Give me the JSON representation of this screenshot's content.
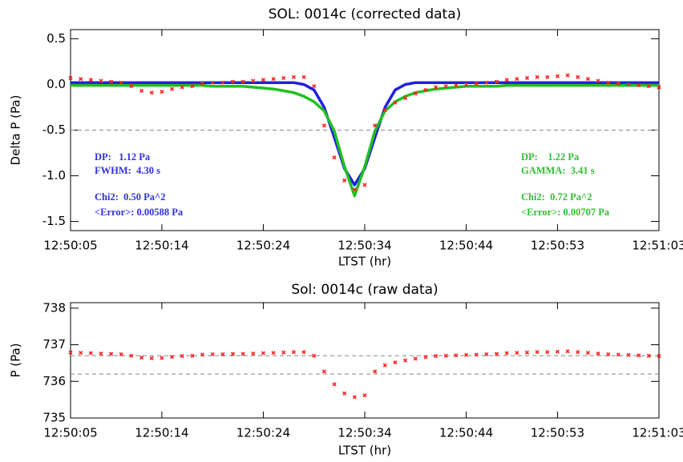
{
  "chart_data": [
    {
      "type": "line",
      "title": "SOL: 0014c (corrected data)",
      "xlabel": "LTST (hr)",
      "ylabel": "Delta P (Pa)",
      "xlim": [
        "12:50:05",
        "12:51:03"
      ],
      "xticks": [
        "12:50:05",
        "12:50:14",
        "12:50:24",
        "12:50:34",
        "12:50:44",
        "12:50:53",
        "12:51:03"
      ],
      "ylim": [
        -1.6,
        0.6
      ],
      "yticks": [
        0.5,
        0.0,
        -0.5,
        -1.0,
        -1.5
      ],
      "ytick_format": 1,
      "hlines": [
        -0.5
      ],
      "x": [
        "12:50:05",
        "12:50:06",
        "12:50:07",
        "12:50:08",
        "12:50:09",
        "12:50:10",
        "12:50:11",
        "12:50:12",
        "12:50:13",
        "12:50:14",
        "12:50:15",
        "12:50:16",
        "12:50:17",
        "12:50:18",
        "12:50:19",
        "12:50:20",
        "12:50:21",
        "12:50:22",
        "12:50:23",
        "12:50:24",
        "12:50:25",
        "12:50:26",
        "12:50:27",
        "12:50:28",
        "12:50:29",
        "12:50:30",
        "12:50:31",
        "12:50:32",
        "12:50:33",
        "12:50:34",
        "12:50:35",
        "12:50:36",
        "12:50:37",
        "12:50:38",
        "12:50:39",
        "12:50:40",
        "12:50:41",
        "12:50:42",
        "12:50:43",
        "12:50:44",
        "12:50:45",
        "12:50:46",
        "12:50:47",
        "12:50:48",
        "12:50:49",
        "12:50:50",
        "12:50:51",
        "12:50:52",
        "12:50:53",
        "12:50:54",
        "12:50:55",
        "12:50:56",
        "12:50:57",
        "12:50:58",
        "12:50:59",
        "12:51:00",
        "12:51:01",
        "12:51:02",
        "12:51:03"
      ],
      "series": [
        {
          "type": "line",
          "color": "#2020e0",
          "values": [
            0.02,
            0.02,
            0.02,
            0.02,
            0.02,
            0.02,
            0.02,
            0.02,
            0.02,
            0.02,
            0.02,
            0.02,
            0.02,
            0.02,
            0.02,
            0.02,
            0.02,
            0.02,
            0.02,
            0.02,
            0.02,
            0.02,
            0.02,
            0.0,
            -0.06,
            -0.25,
            -0.58,
            -0.92,
            -1.1,
            -0.92,
            -0.58,
            -0.25,
            -0.06,
            0.0,
            0.02,
            0.02,
            0.02,
            0.02,
            0.02,
            0.02,
            0.02,
            0.02,
            0.02,
            0.02,
            0.02,
            0.02,
            0.02,
            0.02,
            0.02,
            0.02,
            0.02,
            0.02,
            0.02,
            0.02,
            0.02,
            0.02,
            0.02,
            0.02,
            0.02
          ]
        },
        {
          "type": "line",
          "color": "#20c020",
          "values": [
            -0.01,
            -0.01,
            -0.01,
            -0.01,
            -0.01,
            -0.01,
            -0.01,
            -0.01,
            -0.01,
            -0.01,
            -0.01,
            -0.01,
            -0.01,
            -0.01,
            -0.02,
            -0.02,
            -0.02,
            -0.02,
            -0.03,
            -0.04,
            -0.05,
            -0.07,
            -0.09,
            -0.13,
            -0.19,
            -0.29,
            -0.51,
            -0.9,
            -1.22,
            -0.9,
            -0.51,
            -0.29,
            -0.19,
            -0.13,
            -0.09,
            -0.07,
            -0.05,
            -0.04,
            -0.03,
            -0.02,
            -0.02,
            -0.02,
            -0.02,
            -0.01,
            -0.01,
            -0.01,
            -0.01,
            -0.01,
            -0.01,
            -0.01,
            -0.01,
            -0.01,
            -0.01,
            -0.01,
            -0.01,
            -0.01,
            -0.01,
            -0.01,
            -0.01
          ]
        },
        {
          "type": "scatter",
          "color": "#ff2020",
          "values": [
            0.07,
            0.06,
            0.05,
            0.04,
            0.03,
            0.02,
            -0.02,
            -0.07,
            -0.09,
            -0.08,
            -0.05,
            -0.03,
            -0.02,
            0.01,
            0.02,
            0.02,
            0.03,
            0.03,
            0.04,
            0.05,
            0.06,
            0.07,
            0.08,
            0.08,
            -0.02,
            -0.45,
            -0.8,
            -1.05,
            -1.15,
            -1.1,
            -0.45,
            -0.28,
            -0.2,
            -0.15,
            -0.1,
            -0.06,
            -0.03,
            -0.02,
            -0.01,
            0.0,
            0.01,
            0.02,
            0.03,
            0.05,
            0.06,
            0.07,
            0.08,
            0.08,
            0.09,
            0.1,
            0.08,
            0.06,
            0.04,
            0.02,
            0.01,
            0.0,
            -0.01,
            -0.02,
            -0.03
          ]
        }
      ],
      "annotations": [
        {
          "color": "#3030e0",
          "lines": [
            "DP:   1.12 Pa",
            "FWHM:  4.30 s",
            "Chi2:  0.50 Pa^2",
            "<Error>: 0.00588 Pa"
          ]
        },
        {
          "color": "#30c030",
          "lines": [
            "DP:    1.22 Pa",
            "GAMMA:  3.41 s",
            "Chi2:  0.72 Pa^2",
            "<Error>: 0.00707 Pa"
          ]
        }
      ]
    },
    {
      "type": "scatter",
      "title": "Sol: 0014c (raw data)",
      "xlabel": "LTST (hr)",
      "ylabel": "P (Pa)",
      "xlim": [
        "12:50:05",
        "12:51:03"
      ],
      "xticks": [
        "12:50:05",
        "12:50:14",
        "12:50:24",
        "12:50:34",
        "12:50:44",
        "12:50:53",
        "12:51:03"
      ],
      "ylim": [
        735,
        738.15
      ],
      "yticks": [
        738,
        737,
        736,
        735
      ],
      "hlines": [
        736.7,
        736.2
      ],
      "x": [
        "12:50:05",
        "12:50:06",
        "12:50:07",
        "12:50:08",
        "12:50:09",
        "12:50:10",
        "12:50:11",
        "12:50:12",
        "12:50:13",
        "12:50:14",
        "12:50:15",
        "12:50:16",
        "12:50:17",
        "12:50:18",
        "12:50:19",
        "12:50:20",
        "12:50:21",
        "12:50:22",
        "12:50:23",
        "12:50:24",
        "12:50:25",
        "12:50:26",
        "12:50:27",
        "12:50:28",
        "12:50:29",
        "12:50:30",
        "12:50:31",
        "12:50:32",
        "12:50:33",
        "12:50:34",
        "12:50:35",
        "12:50:36",
        "12:50:37",
        "12:50:38",
        "12:50:39",
        "12:50:40",
        "12:50:41",
        "12:50:42",
        "12:50:43",
        "12:50:44",
        "12:50:45",
        "12:50:46",
        "12:50:47",
        "12:50:48",
        "12:50:49",
        "12:50:50",
        "12:50:51",
        "12:50:52",
        "12:50:53",
        "12:50:54",
        "12:50:55",
        "12:50:56",
        "12:50:57",
        "12:50:58",
        "12:50:59",
        "12:51:00",
        "12:51:01",
        "12:51:02",
        "12:51:03"
      ],
      "series": [
        {
          "type": "scatter",
          "color": "#ff2020",
          "values": [
            736.79,
            736.78,
            736.77,
            736.76,
            736.75,
            736.74,
            736.7,
            736.65,
            736.63,
            736.64,
            736.67,
            736.69,
            736.7,
            736.73,
            736.74,
            736.74,
            736.75,
            736.75,
            736.76,
            736.77,
            736.78,
            736.79,
            736.8,
            736.8,
            736.7,
            736.27,
            735.92,
            735.67,
            735.57,
            735.62,
            736.27,
            736.44,
            736.52,
            736.57,
            736.62,
            736.66,
            736.69,
            736.7,
            736.71,
            736.72,
            736.73,
            736.74,
            736.75,
            736.77,
            736.78,
            736.79,
            736.8,
            736.8,
            736.81,
            736.82,
            736.8,
            736.78,
            736.76,
            736.74,
            736.73,
            736.72,
            736.71,
            736.7,
            736.69
          ]
        }
      ]
    }
  ]
}
